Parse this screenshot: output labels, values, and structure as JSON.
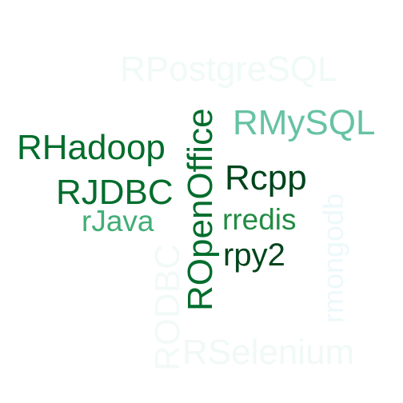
{
  "words": {
    "rpostgresql": {
      "text": "RPostgreSQL",
      "color": "#f0faf7"
    },
    "rmysql": {
      "text": "RMySQL",
      "color": "#66c2a4"
    },
    "rhadoop": {
      "text": "RHadoop",
      "color": "#006d2c"
    },
    "rcpp": {
      "text": "Rcpp",
      "color": "#00441b"
    },
    "rjdbc": {
      "text": "RJDBC",
      "color": "#006d2c"
    },
    "rjava": {
      "text": "rJava",
      "color": "#41ae76"
    },
    "rredis": {
      "text": "rredis",
      "color": "#238b45"
    },
    "rpy2": {
      "text": "rpy2",
      "color": "#00441b"
    },
    "ropenoffice": {
      "text": "ROpenOffice",
      "color": "#006d2c"
    },
    "rmongodb": {
      "text": "rmongodb",
      "color": "#edf8fb"
    },
    "rodbc": {
      "text": "RODBC",
      "color": "#f2faf7"
    },
    "rselenium": {
      "text": "RSelenium",
      "color": "#f0f9f6"
    }
  }
}
